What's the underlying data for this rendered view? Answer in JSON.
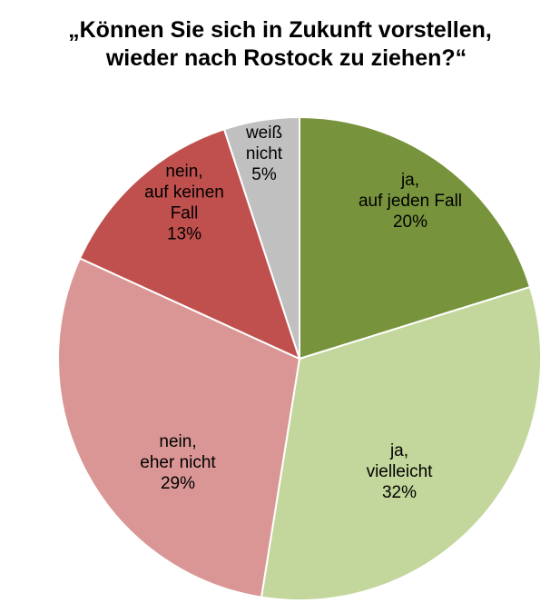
{
  "chart_data": {
    "type": "pie",
    "title_lines": [
      "„Können Sie sich in Zukunft vorstellen,",
      "wieder nach Rostock zu ziehen?“"
    ],
    "slices": [
      {
        "label_lines": [
          "ja,",
          "auf jeden Fall"
        ],
        "value": 20,
        "value_label": "20%",
        "color": "#77933c"
      },
      {
        "label_lines": [
          "ja,",
          "vielleicht"
        ],
        "value": 32,
        "value_label": "32%",
        "color": "#c3d69b"
      },
      {
        "label_lines": [
          "nein,",
          "eher nicht"
        ],
        "value": 29,
        "value_label": "29%",
        "color": "#d99694"
      },
      {
        "label_lines": [
          "nein,",
          "auf keinen",
          "Fall"
        ],
        "value": 13,
        "value_label": "13%",
        "color": "#c0504d"
      },
      {
        "label_lines": [
          "weiß",
          "nicht"
        ],
        "value": 5,
        "value_label": "5%",
        "color": "#c0c0c0"
      }
    ],
    "legend": false
  }
}
